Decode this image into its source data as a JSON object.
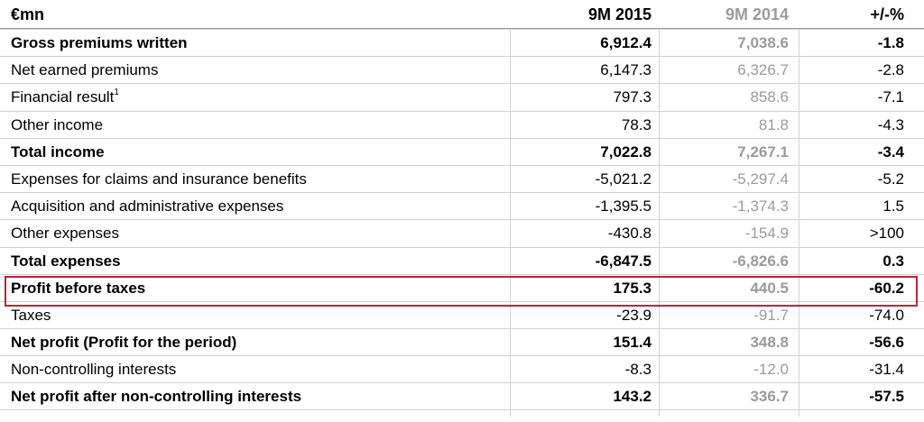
{
  "header": {
    "unit": "€mn",
    "col_current": "9M 2015",
    "col_previous": "9M 2014",
    "col_change": "+/-%"
  },
  "rows": [
    {
      "label": "Gross premiums written",
      "sup": "",
      "current": "6,912.4",
      "previous": "7,038.6",
      "change": "-1.8",
      "bold": true
    },
    {
      "label": "Net earned premiums",
      "sup": "",
      "current": "6,147.3",
      "previous": "6,326.7",
      "change": "-2.8",
      "bold": false
    },
    {
      "label": "Financial result",
      "sup": "1",
      "current": "797.3",
      "previous": "858.6",
      "change": "-7.1",
      "bold": false
    },
    {
      "label": "Other income",
      "sup": "",
      "current": "78.3",
      "previous": "81.8",
      "change": "-4.3",
      "bold": false
    },
    {
      "label": "Total income",
      "sup": "",
      "current": "7,022.8",
      "previous": "7,267.1",
      "change": "-3.4",
      "bold": true
    },
    {
      "label": "Expenses for claims and insurance benefits",
      "sup": "",
      "current": "-5,021.2",
      "previous": "-5,297.4",
      "change": "-5.2",
      "bold": false
    },
    {
      "label": "Acquisition and administrative expenses",
      "sup": "",
      "current": "-1,395.5",
      "previous": "-1,374.3",
      "change": "1.5",
      "bold": false
    },
    {
      "label": "Other expenses",
      "sup": "",
      "current": "-430.8",
      "previous": "-154.9",
      "change": ">100",
      "bold": false
    },
    {
      "label": "Total expenses",
      "sup": "",
      "current": "-6,847.5",
      "previous": "-6,826.6",
      "change": "0.3",
      "bold": true
    },
    {
      "label": "Profit before taxes",
      "sup": "",
      "current": "175.3",
      "previous": "440.5",
      "change": "-60.2",
      "bold": true
    },
    {
      "label": "Taxes",
      "sup": "",
      "current": "-23.9",
      "previous": "-91.7",
      "change": "-74.0",
      "bold": false
    },
    {
      "label": "Net profit (Profit for the period)",
      "sup": "",
      "current": "151.4",
      "previous": "348.8",
      "change": "-56.6",
      "bold": true
    },
    {
      "label": "Non-controlling interests",
      "sup": "",
      "current": "-8.3",
      "previous": "-12.0",
      "change": "-31.4",
      "bold": false
    },
    {
      "label": "Net profit after non-controlling interests",
      "sup": "",
      "current": "143.2",
      "previous": "336.7",
      "change": "-57.5",
      "bold": true
    }
  ],
  "colors": {
    "highlight_border": "#b4283c",
    "previous_year_text": "#9b9b9b"
  }
}
